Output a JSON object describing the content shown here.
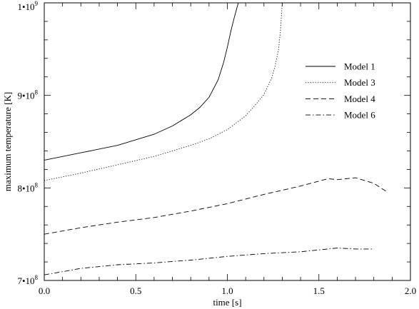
{
  "chart_data": {
    "type": "line",
    "xlabel": "time [s]",
    "ylabel": "maximum temperature [K]",
    "xlim": [
      0.0,
      2.0
    ],
    "ylim": [
      700000000,
      1000000000
    ],
    "x_ticks": [
      {
        "value": 0.0,
        "label": "0.0"
      },
      {
        "value": 0.5,
        "label": "0.5"
      },
      {
        "value": 1.0,
        "label": "1.0"
      },
      {
        "value": 1.5,
        "label": "1.5"
      },
      {
        "value": 2.0,
        "label": "2.0"
      }
    ],
    "y_ticks": [
      {
        "value": 700000000,
        "mantissa": "7",
        "exponent": "8"
      },
      {
        "value": 800000000,
        "mantissa": "8",
        "exponent": "8"
      },
      {
        "value": 900000000,
        "mantissa": "9",
        "exponent": "8"
      },
      {
        "value": 1000000000,
        "mantissa": "1",
        "exponent": "9"
      }
    ],
    "legend_position": "right",
    "grid": false,
    "series": [
      {
        "name": "Model 1",
        "dash": "solid",
        "points": [
          [
            0.0,
            830000000.0
          ],
          [
            0.2,
            838000000.0
          ],
          [
            0.4,
            846000000.0
          ],
          [
            0.6,
            858000000.0
          ],
          [
            0.7,
            867000000.0
          ],
          [
            0.8,
            879000000.0
          ],
          [
            0.85,
            887000000.0
          ],
          [
            0.9,
            898000000.0
          ],
          [
            0.95,
            917000000.0
          ],
          [
            0.98,
            936000000.0
          ],
          [
            1.0,
            952000000.0
          ],
          [
            1.02,
            970000000.0
          ],
          [
            1.04,
            986000000.0
          ],
          [
            1.06,
            1000000000.0
          ]
        ]
      },
      {
        "name": "Model 3",
        "dash": "dotted",
        "points": [
          [
            0.0,
            808000000.0
          ],
          [
            0.2,
            816000000.0
          ],
          [
            0.4,
            825000000.0
          ],
          [
            0.6,
            834000000.0
          ],
          [
            0.8,
            846000000.0
          ],
          [
            0.9,
            853000000.0
          ],
          [
            1.0,
            863000000.0
          ],
          [
            1.1,
            878000000.0
          ],
          [
            1.15,
            889000000.0
          ],
          [
            1.2,
            901000000.0
          ],
          [
            1.24,
            918000000.0
          ],
          [
            1.26,
            931000000.0
          ],
          [
            1.28,
            950000000.0
          ],
          [
            1.29,
            970000000.0
          ],
          [
            1.3,
            1000000000.0
          ]
        ]
      },
      {
        "name": "Model 4",
        "dash": "dashed",
        "points": [
          [
            0.0,
            750000000.0
          ],
          [
            0.2,
            757000000.0
          ],
          [
            0.4,
            763000000.0
          ],
          [
            0.6,
            768000000.0
          ],
          [
            0.8,
            775000000.0
          ],
          [
            1.0,
            783000000.0
          ],
          [
            1.2,
            793000000.0
          ],
          [
            1.4,
            802000000.0
          ],
          [
            1.55,
            810000000.0
          ],
          [
            1.6,
            809000000.0
          ],
          [
            1.7,
            811000000.0
          ],
          [
            1.8,
            805000000.0
          ],
          [
            1.87,
            796000000.0
          ]
        ]
      },
      {
        "name": "Model 6",
        "dash": "dashdot",
        "points": [
          [
            0.0,
            706000000.0
          ],
          [
            0.2,
            713000000.0
          ],
          [
            0.4,
            717000000.0
          ],
          [
            0.6,
            719000000.0
          ],
          [
            0.8,
            722000000.0
          ],
          [
            1.0,
            726000000.0
          ],
          [
            1.2,
            729000000.0
          ],
          [
            1.4,
            731000000.0
          ],
          [
            1.6,
            735000000.0
          ],
          [
            1.7,
            734000000.0
          ],
          [
            1.8,
            734000000.0
          ]
        ]
      }
    ]
  }
}
